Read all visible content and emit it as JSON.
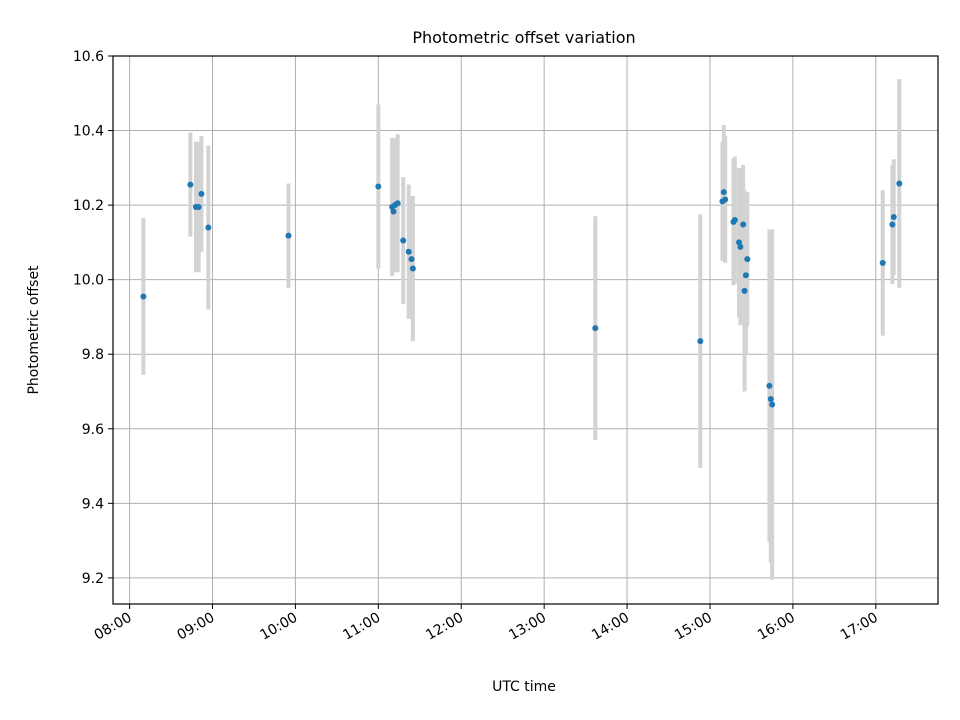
{
  "chart_data": {
    "type": "scatter",
    "title": "Photometric offset variation",
    "xlabel": "UTC time",
    "ylabel": "Photometric offset",
    "grid": true,
    "xlim": [
      "07:48",
      "17:45"
    ],
    "ylim": [
      9.13,
      10.6
    ],
    "x_ticks": [
      "08:00",
      "09:00",
      "10:00",
      "11:00",
      "12:00",
      "13:00",
      "14:00",
      "15:00",
      "16:00",
      "17:00"
    ],
    "y_ticks": [
      "9.2",
      "9.4",
      "9.6",
      "9.8",
      "10.0",
      "10.2",
      "10.4",
      "10.6"
    ],
    "colors": {
      "points": "#1f77b4",
      "error_bars": "#d3d3d3",
      "grid": "#b0b0b0"
    },
    "series": [
      {
        "points": [
          {
            "x": "08:10",
            "y": 9.955,
            "err": 0.21
          },
          {
            "x": "08:44",
            "y": 10.255,
            "err": 0.14
          },
          {
            "x": "08:48",
            "y": 10.195,
            "err": 0.175
          },
          {
            "x": "08:50",
            "y": 10.195,
            "err": 0.175
          },
          {
            "x": "08:52",
            "y": 10.23,
            "err": 0.155
          },
          {
            "x": "08:57",
            "y": 10.14,
            "err": 0.22
          },
          {
            "x": "09:55",
            "y": 10.118,
            "err": 0.14
          },
          {
            "x": "11:00",
            "y": 10.25,
            "err": 0.22
          },
          {
            "x": "11:10",
            "y": 10.195,
            "err": 0.185
          },
          {
            "x": "11:11",
            "y": 10.183,
            "err": 0.16
          },
          {
            "x": "11:12",
            "y": 10.2,
            "err": 0.18
          },
          {
            "x": "11:14",
            "y": 10.205,
            "err": 0.185
          },
          {
            "x": "11:18",
            "y": 10.105,
            "err": 0.17
          },
          {
            "x": "11:22",
            "y": 10.075,
            "err": 0.18
          },
          {
            "x": "11:24",
            "y": 10.055,
            "err": 0.16
          },
          {
            "x": "11:25",
            "y": 10.03,
            "err": 0.195
          },
          {
            "x": "13:37",
            "y": 9.87,
            "err": 0.3
          },
          {
            "x": "14:53",
            "y": 9.835,
            "err": 0.34
          },
          {
            "x": "15:09",
            "y": 10.21,
            "err": 0.16
          },
          {
            "x": "15:10",
            "y": 10.235,
            "err": 0.18
          },
          {
            "x": "15:11",
            "y": 10.215,
            "err": 0.17
          },
          {
            "x": "15:17",
            "y": 10.155,
            "err": 0.17
          },
          {
            "x": "15:18",
            "y": 10.16,
            "err": 0.17
          },
          {
            "x": "15:21",
            "y": 10.1,
            "err": 0.2
          },
          {
            "x": "15:22",
            "y": 10.088,
            "err": 0.21
          },
          {
            "x": "15:24",
            "y": 10.148,
            "err": 0.16
          },
          {
            "x": "15:25",
            "y": 9.97,
            "err": 0.27
          },
          {
            "x": "15:26",
            "y": 10.012,
            "err": 0.21
          },
          {
            "x": "15:27",
            "y": 10.055,
            "err": 0.18
          },
          {
            "x": "15:43",
            "y": 9.715,
            "err": 0.42
          },
          {
            "x": "15:44",
            "y": 9.68,
            "err": 0.44
          },
          {
            "x": "15:45",
            "y": 9.665,
            "err": 0.47
          },
          {
            "x": "17:05",
            "y": 10.045,
            "err": 0.195
          },
          {
            "x": "17:12",
            "y": 10.148,
            "err": 0.16
          },
          {
            "x": "17:13",
            "y": 10.168,
            "err": 0.155
          },
          {
            "x": "17:17",
            "y": 10.258,
            "err": 0.28
          }
        ]
      }
    ]
  }
}
